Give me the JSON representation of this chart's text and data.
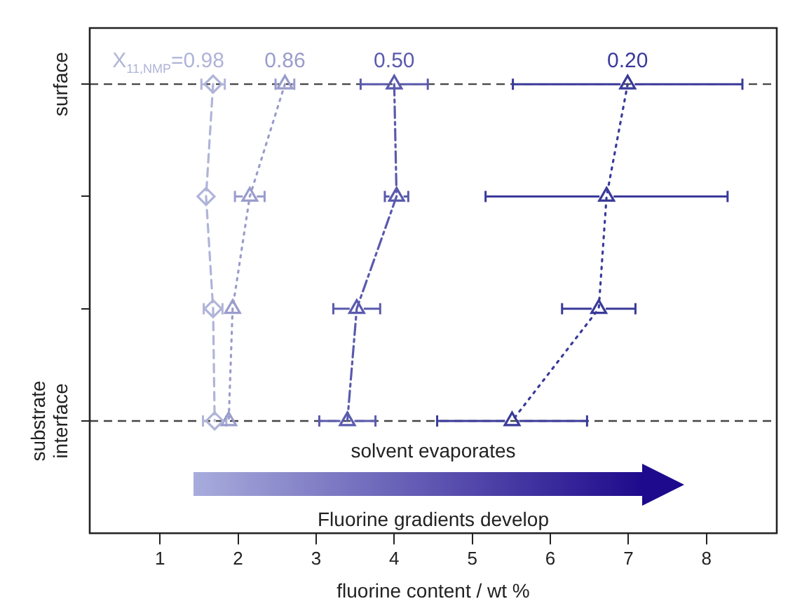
{
  "chart_data": {
    "type": "line",
    "orientation": "horizontal",
    "xlabel": "fluorine content / wt %",
    "xlim": [
      0.1,
      8.9
    ],
    "xticks": [
      1,
      2,
      3,
      4,
      5,
      6,
      7,
      8
    ],
    "categories": [
      "surface",
      null,
      null,
      "substrate interface"
    ],
    "grid": false,
    "legend": false,
    "series": [
      {
        "name": "X$_{11,NMP}$=0.98",
        "color": "#b0b4d8",
        "values": [
          1.68,
          1.59,
          1.68,
          1.7
        ],
        "errors": [
          0.15,
          null,
          0.12,
          0.15
        ],
        "marker": "diamond",
        "line_style": "dashed"
      },
      {
        "name": "0.86",
        "color": "#9a9ccc",
        "values": [
          2.6,
          2.15,
          1.93,
          1.88
        ],
        "errors": [
          0.12,
          0.19,
          null,
          null
        ],
        "marker": "triangle",
        "line_style": "dotted"
      },
      {
        "name": "0.50",
        "color": "#5a5aae",
        "values": [
          4.0,
          4.03,
          3.52,
          3.4
        ],
        "errors": [
          0.43,
          0.15,
          0.3,
          0.36
        ],
        "marker": "triangle",
        "line_style": "dashdot"
      },
      {
        "name": "0.20",
        "color": "#3a3a9a",
        "values": [
          6.99,
          6.72,
          6.62,
          5.51
        ],
        "errors": [
          1.47,
          1.55,
          0.47,
          0.96
        ],
        "marker": "triangle",
        "line_style": "dotted"
      }
    ],
    "ref_lines": [
      {
        "axis": "y",
        "value": "surface",
        "line_style": "dashed",
        "color": "#444444"
      },
      {
        "axis": "y",
        "value": "substrate interface",
        "line_style": "dashed",
        "color": "#444444"
      }
    ],
    "annotations": [
      "solvent evaporates",
      "Fluorine gradients develop"
    ]
  }
}
